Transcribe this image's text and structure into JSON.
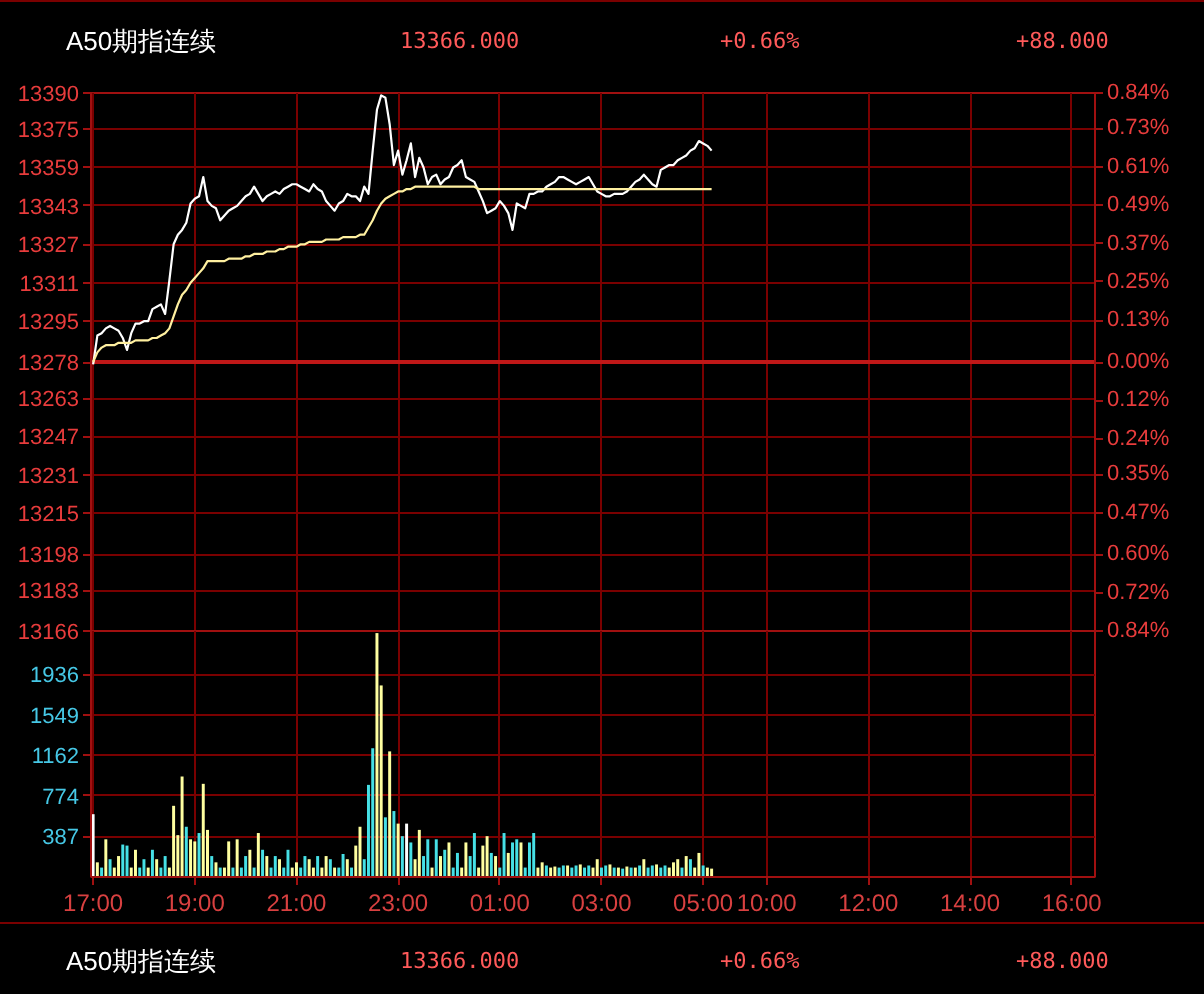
{
  "chart_data": [
    {
      "type": "line",
      "title": "A50期指连续",
      "annotations": [
        "13366.000",
        "+0.66%",
        "+88.000"
      ],
      "categories": [
        null,
        null,
        null,
        null,
        null,
        null,
        null,
        null,
        null,
        null,
        null,
        null,
        null,
        null,
        null,
        null,
        null,
        null,
        null,
        null,
        null,
        null,
        null,
        null,
        null,
        null,
        null,
        null,
        null,
        null,
        null,
        null,
        null,
        null,
        null,
        null,
        null,
        null,
        null,
        null,
        null,
        null,
        null,
        null,
        null,
        null,
        null,
        null,
        null,
        null,
        null,
        null,
        null,
        null,
        null,
        null,
        null,
        null,
        null,
        null,
        null,
        null,
        null,
        null,
        null,
        null,
        null,
        null,
        null,
        null,
        null,
        null,
        null,
        null,
        null,
        null,
        null,
        null,
        null,
        null,
        null,
        null,
        null,
        null,
        null,
        null,
        null,
        null,
        null,
        null,
        null,
        null,
        null,
        null,
        null,
        null,
        null,
        null,
        null,
        null,
        null,
        null,
        null,
        null,
        null,
        null,
        null,
        null,
        null,
        null,
        null,
        null,
        null,
        null,
        null,
        null,
        null,
        null,
        null,
        null,
        null,
        null,
        null,
        null,
        null,
        null,
        null,
        null,
        null,
        null,
        null,
        null,
        null,
        null,
        null,
        null,
        null,
        null,
        null,
        null,
        null,
        null,
        null,
        null,
        null,
        null,
        null,
        null,
        null,
        null,
        null,
        null,
        null,
        null,
        null,
        null,
        null,
        null,
        null,
        null,
        null,
        null,
        null,
        null,
        null,
        null,
        null,
        null,
        null,
        null,
        null,
        null,
        null,
        null,
        null,
        null,
        null,
        null,
        null,
        null,
        null,
        null,
        null,
        null,
        null,
        null,
        null,
        null,
        null,
        null,
        null,
        null,
        null,
        null,
        null,
        null,
        null,
        null,
        null,
        null,
        null,
        null,
        null,
        null,
        null,
        null,
        null,
        null,
        null,
        null,
        null,
        null,
        null,
        null,
        null,
        null,
        null,
        null,
        null,
        null,
        null,
        null,
        null,
        null,
        null,
        null,
        null,
        null,
        null,
        null,
        null,
        null,
        null,
        null,
        null,
        null,
        null
      ],
      "ylim": [
        13166,
        13390
      ],
      "yticks": [
        13390,
        13375,
        13359,
        13343,
        13327,
        13311,
        13295,
        13278,
        13263,
        13247,
        13231,
        13215,
        13198,
        13183,
        13166
      ],
      "y2lim": [
        -0.84,
        0.84
      ],
      "y2ticks": [
        {
          "value": 0.84,
          "label": "0.84%"
        },
        {
          "value": 0.73,
          "label": "0.73%"
        },
        {
          "value": 0.61,
          "label": "0.61%"
        },
        {
          "value": 0.49,
          "label": "0.49%"
        },
        {
          "value": 0.37,
          "label": "0.37%"
        },
        {
          "value": 0.25,
          "label": "0.25%"
        },
        {
          "value": 0.13,
          "label": "0.13%"
        },
        {
          "value": 0,
          "label": "0.00%"
        },
        {
          "value": -0.12,
          "label": "0.12%"
        },
        {
          "value": -0.24,
          "label": "0.24%"
        },
        {
          "value": -0.35,
          "label": "0.35%"
        },
        {
          "value": -0.47,
          "label": "0.47%"
        },
        {
          "value": -0.6,
          "label": "0.60%"
        },
        {
          "value": -0.72,
          "label": "0.72%"
        },
        {
          "value": -0.84,
          "label": "0.84%"
        }
      ],
      "grid": true,
      "tick_labels": "y",
      "ref_lines": [
        {
          "axis": "y",
          "value": 13278
        }
      ],
      "series": [
        {
          "color": "#ffffff",
          "values": [
            13277,
            13289,
            13290,
            13292,
            13293,
            13292,
            13291,
            13288,
            13283,
            13290,
            13294,
            13294,
            13295,
            13295,
            13300,
            13301,
            13302,
            13298,
            13312,
            13327,
            13331,
            13333,
            13336,
            13344,
            13346,
            13347,
            13355,
            13345,
            13343,
            13342,
            13337,
            13339,
            13341,
            13342,
            13343,
            13345,
            13347,
            13348,
            13351,
            13348,
            13345,
            13347,
            13348,
            13349,
            13348,
            13350,
            13351,
            13352,
            13352,
            13351,
            13350,
            13349,
            13352,
            13350,
            13349,
            13345,
            13343,
            13341,
            13344,
            13345,
            13348,
            13347,
            13347,
            13345,
            13351,
            13348,
            13366,
            13383,
            13389,
            13388,
            13377,
            13360,
            13366,
            13356,
            13362,
            13369,
            13355,
            13363,
            13359,
            13352,
            13355,
            13356,
            13352,
            13354,
            13355,
            13359,
            13360,
            13362,
            13355,
            13354,
            13353,
            13349,
            13345,
            13340,
            13341,
            13342,
            13345,
            13343,
            13340,
            13333,
            13344,
            13343,
            13342,
            13348,
            13348,
            13349,
            13349,
            13351,
            13352,
            13353,
            13355,
            13355,
            13354,
            13353,
            13352,
            13353,
            13354,
            13355,
            13352,
            13349,
            13348,
            13347,
            13347,
            13348,
            13348,
            13348,
            13349,
            13351,
            13353,
            13354,
            13356,
            13354,
            13352,
            13351,
            13358,
            13359,
            13360,
            13360,
            13362,
            13363,
            13364,
            13366,
            13367,
            13370,
            13369,
            13368,
            13366,
            null,
            null,
            null,
            null,
            null,
            null,
            null,
            null,
            null,
            null,
            null,
            null,
            null,
            null,
            null,
            null,
            null,
            null,
            null,
            null,
            null,
            null,
            null,
            null,
            null,
            null,
            null,
            null,
            null,
            null,
            null,
            null,
            null,
            null,
            null,
            null,
            null,
            null,
            null,
            null,
            null,
            null,
            null,
            null,
            null,
            null,
            null,
            null,
            null,
            null,
            null,
            null,
            null,
            null,
            null,
            null,
            null,
            null,
            null,
            null,
            null,
            null,
            null,
            null,
            null,
            null,
            null,
            null,
            null,
            null,
            null,
            null,
            null,
            null,
            null,
            null,
            null,
            null,
            null,
            null,
            null,
            null,
            null,
            null,
            null,
            null,
            null,
            null,
            null,
            null
          ]
        },
        {
          "color": "#fff0a0",
          "values": [
            13278,
            13282,
            13284,
            13285,
            13285,
            13285,
            13286,
            13286,
            13286,
            13286,
            13287,
            13287,
            13287,
            13287,
            13288,
            13288,
            13289,
            13290,
            13292,
            13297,
            13302,
            13306,
            13308,
            13311,
            13313,
            13315,
            13317,
            13320,
            13320,
            13320,
            13320,
            13320,
            13321,
            13321,
            13321,
            13321,
            13322,
            13322,
            13323,
            13323,
            13323,
            13324,
            13324,
            13324,
            13325,
            13325,
            13326,
            13326,
            13326,
            13327,
            13327,
            13328,
            13328,
            13328,
            13328,
            13329,
            13329,
            13329,
            13329,
            13330,
            13330,
            13330,
            13330,
            13331,
            13331,
            13334,
            13337,
            13341,
            13344,
            13346,
            13347,
            13348,
            13349,
            13349,
            13350,
            13350,
            13351,
            13351,
            13351,
            13351,
            13351,
            13351,
            13351,
            13351,
            13351,
            13351,
            13351,
            13351,
            13351,
            13351,
            13351,
            13350,
            13350,
            13350,
            13350,
            13350,
            13350,
            13350,
            13350,
            13350,
            13350,
            13350,
            13350,
            13350,
            13350,
            13350,
            13350,
            13350,
            13350,
            13350,
            13350,
            13350,
            13350,
            13350,
            13350,
            13350,
            13350,
            13350,
            13350,
            13350,
            13350,
            13350,
            13350,
            13350,
            13350,
            13350,
            13350,
            13350,
            13350,
            13350,
            13350,
            13350,
            13350,
            13350,
            13350,
            13350,
            13350,
            13350,
            13350,
            13350,
            13350,
            13350,
            13350,
            13350,
            13350,
            13350,
            13350,
            null,
            null,
            null,
            null,
            null,
            null,
            null,
            null,
            null,
            null,
            null,
            null,
            null,
            null,
            null,
            null,
            null,
            null,
            null,
            null,
            null,
            null,
            null,
            null,
            null,
            null,
            null,
            null,
            null,
            null,
            null,
            null,
            null,
            null,
            null,
            null,
            null,
            null,
            null,
            null,
            null,
            null,
            null,
            null,
            null,
            null,
            null,
            null,
            null,
            null,
            null,
            null,
            null,
            null,
            null,
            null,
            null,
            null,
            null,
            null,
            null,
            null,
            null,
            null,
            null,
            null,
            null,
            null,
            null,
            null,
            null,
            null,
            null,
            null,
            null,
            null,
            null,
            null,
            null,
            null,
            null,
            null,
            null,
            null,
            null,
            null,
            null,
            null,
            null,
            null
          ]
        }
      ]
    },
    {
      "type": "bar",
      "categories": [
        "17:00",
        null,
        null,
        null,
        null,
        null,
        null,
        null,
        null,
        null,
        null,
        null,
        null,
        null,
        null,
        null,
        null,
        null,
        null,
        null,
        null,
        null,
        null,
        null,
        "19:00",
        null,
        null,
        null,
        null,
        null,
        null,
        null,
        null,
        null,
        null,
        null,
        null,
        null,
        null,
        null,
        null,
        null,
        null,
        null,
        null,
        null,
        null,
        null,
        "21:00",
        null,
        null,
        null,
        null,
        null,
        null,
        null,
        null,
        null,
        null,
        null,
        null,
        null,
        null,
        null,
        null,
        null,
        null,
        null,
        null,
        null,
        null,
        null,
        "23:00",
        null,
        null,
        null,
        null,
        null,
        null,
        null,
        null,
        null,
        null,
        null,
        null,
        null,
        null,
        null,
        null,
        null,
        null,
        null,
        null,
        null,
        null,
        null,
        "01:00",
        null,
        null,
        null,
        null,
        null,
        null,
        null,
        null,
        null,
        null,
        null,
        null,
        null,
        null,
        null,
        null,
        null,
        null,
        null,
        null,
        null,
        null,
        null,
        "03:00",
        null,
        null,
        null,
        null,
        null,
        null,
        null,
        null,
        null,
        null,
        null,
        null,
        null,
        null,
        null,
        null,
        null,
        null,
        null,
        null,
        null,
        null,
        null,
        "05:00",
        null,
        null,
        null,
        null,
        null,
        null,
        null,
        null,
        null,
        null,
        null,
        null,
        null,
        null,
        "10:00",
        null,
        null,
        null,
        null,
        null,
        null,
        null,
        null,
        null,
        null,
        null,
        null,
        null,
        null,
        null,
        null,
        null,
        null,
        null,
        null,
        null,
        null,
        null,
        "12:00",
        null,
        null,
        null,
        null,
        null,
        null,
        null,
        null,
        null,
        null,
        null,
        null,
        null,
        null,
        null,
        null,
        null,
        null,
        null,
        null,
        null,
        null,
        null,
        "14:00",
        null,
        null,
        null,
        null,
        null,
        null,
        null,
        null,
        null,
        null,
        null,
        null,
        null,
        null,
        null,
        null,
        null,
        null,
        null,
        null,
        null,
        null,
        null,
        "16:00",
        null,
        null,
        null,
        null,
        null
      ],
      "ylim": [
        0,
        2350
      ],
      "yticks": [
        387,
        774,
        1162,
        1549,
        1936
      ],
      "grid": true,
      "values": [
        600,
        140,
        90,
        360,
        170,
        90,
        200,
        310,
        300,
        90,
        260,
        90,
        170,
        90,
        260,
        170,
        90,
        200,
        90,
        680,
        400,
        960,
        480,
        360,
        340,
        420,
        890,
        450,
        200,
        140,
        90,
        90,
        340,
        90,
        360,
        90,
        200,
        260,
        90,
        420,
        260,
        200,
        90,
        200,
        170,
        90,
        260,
        90,
        140,
        90,
        200,
        170,
        90,
        200,
        90,
        200,
        170,
        90,
        90,
        220,
        170,
        90,
        300,
        480,
        170,
        880,
        1230,
        2330,
        1830,
        570,
        1200,
        630,
        510,
        390,
        510,
        330,
        170,
        450,
        200,
        360,
        90,
        360,
        200,
        260,
        330,
        90,
        230,
        90,
        330,
        200,
        420,
        90,
        300,
        390,
        230,
        200,
        90,
        420,
        230,
        330,
        360,
        330,
        90,
        330,
        420,
        90,
        140,
        110,
        90,
        100,
        90,
        110,
        110,
        90,
        110,
        120,
        90,
        110,
        90,
        170,
        90,
        110,
        120,
        90,
        90,
        80,
        100,
        90,
        90,
        110,
        170,
        90,
        110,
        120,
        90,
        110,
        90,
        140,
        170,
        90,
        200,
        170,
        90,
        230,
        110,
        90,
        80,
        null,
        null,
        null,
        null,
        null,
        null,
        null,
        null,
        null,
        null,
        null,
        null,
        null,
        null,
        null,
        null,
        null,
        null,
        null,
        null,
        null,
        null,
        null,
        null,
        null,
        null,
        null,
        null,
        null,
        null,
        null,
        null,
        null,
        null,
        null,
        null,
        null,
        null,
        null,
        null,
        null,
        null,
        null,
        null,
        null,
        null,
        null,
        null,
        null,
        null,
        null,
        null,
        null,
        null,
        null,
        null,
        null,
        null,
        null,
        null,
        null,
        null,
        null,
        null,
        null,
        null,
        null,
        null,
        null,
        null,
        null,
        null,
        null,
        null,
        null,
        null,
        null,
        null,
        null,
        null,
        null,
        null,
        null,
        null,
        null,
        null,
        null,
        null,
        null,
        null
      ],
      "colors": [
        "#ffffff",
        "#ffffa0",
        "#46e0e6",
        "#ffffa0",
        "#46e0e6",
        "#ffffa0",
        "#ffffa0",
        "#46e0e6",
        "#46e0e6",
        "#ffffa0",
        "#ffffa0",
        "#46e0e6",
        "#46e0e6",
        "#ffffa0",
        "#46e0e6",
        "#ffffa0",
        "#46e0e6",
        "#46e0e6",
        "#ffffa0",
        "#ffffa0",
        "#ffffa0",
        "#ffffa0",
        "#46e0e6",
        "#ffffa0",
        "#ffffa0",
        "#46e0e6",
        "#ffffa0",
        "#ffffa0",
        "#46e0e6",
        "#ffffa0",
        "#46e0e6",
        "#ffffa0",
        "#ffffa0",
        "#46e0e6",
        "#ffffa0",
        "#46e0e6",
        "#46e0e6",
        "#ffffa0",
        "#46e0e6",
        "#ffffa0",
        "#46e0e6",
        "#ffffa0",
        "#46e0e6",
        "#46e0e6",
        "#ffffa0",
        "#46e0e6",
        "#46e0e6",
        "#ffffa0",
        "#ffffa0",
        "#46e0e6",
        "#46e0e6",
        "#ffffa0",
        "#ffffa0",
        "#46e0e6",
        "#ffffa0",
        "#ffffa0",
        "#46e0e6",
        "#ffffa0",
        "#46e0e6",
        "#46e0e6",
        "#ffffa0",
        "#46e0e6",
        "#ffffa0",
        "#ffffa0",
        "#46e0e6",
        "#46e0e6",
        "#46e0e6",
        "#ffffa0",
        "#ffffa0",
        "#46e0e6",
        "#ffffa0",
        "#46e0e6",
        "#ffffa0",
        "#46e0e6",
        "#ffffff",
        "#46e0e6",
        "#ffffa0",
        "#ffffa0",
        "#46e0e6",
        "#46e0e6",
        "#ffffa0",
        "#46e0e6",
        "#ffffa0",
        "#46e0e6",
        "#ffffa0",
        "#46e0e6",
        "#46e0e6",
        "#ffffa0",
        "#ffffa0",
        "#46e0e6",
        "#46e0e6",
        "#ffffa0",
        "#ffffa0",
        "#ffffa0",
        "#46e0e6",
        "#ffffa0",
        "#46e0e6",
        "#46e0e6",
        "#ffffa0",
        "#46e0e6",
        "#46e0e6",
        "#ffffa0",
        "#46e0e6",
        "#46e0e6",
        "#46e0e6",
        "#ffffa0",
        "#ffffa0",
        "#46e0e6",
        "#ffffa0",
        "#ffffa0",
        "#46e0e6",
        "#46e0e6",
        "#ffffa0",
        "#46e0e6",
        "#46e0e6",
        "#ffffa0",
        "#46e0e6",
        "#46e0e6",
        "#ffffa0",
        "#ffffa0",
        "#46e0e6",
        "#46e0e6",
        "#ffffa0",
        "#46e0e6",
        "#ffffa0",
        "#46e0e6",
        "#ffffa0",
        "#46e0e6",
        "#ffffa0",
        "#46e0e6",
        "#ffffa0",
        "#46e0e6",
        "#46e0e6",
        "#ffffa0",
        "#46e0e6",
        "#46e0e6",
        "#ffffa0",
        "#ffffa0",
        "#ffffa0",
        "#46e0e6",
        "#ffffa0",
        "#46e0e6",
        "#ffffa0",
        "#ffffa0",
        "#46e0e6",
        "#ffffa0",
        "#ffffa0",
        null,
        null,
        null,
        null,
        null,
        null,
        null,
        null,
        null,
        null,
        null,
        null,
        null,
        null,
        null,
        null,
        null,
        null,
        null,
        null,
        null,
        null,
        null,
        null,
        null,
        null,
        null,
        null,
        null,
        null,
        null,
        null,
        null,
        null,
        null,
        null,
        null,
        null,
        null,
        null,
        null,
        null,
        null,
        null,
        null,
        null,
        null,
        null,
        null,
        null,
        null,
        null,
        null,
        null,
        null,
        null,
        null,
        null,
        null,
        null,
        null,
        null,
        null,
        null,
        null,
        null,
        null,
        null,
        null,
        null,
        null,
        null,
        null,
        null,
        null,
        null,
        null,
        null,
        null,
        null,
        null,
        null,
        null,
        null,
        null,
        null,
        null,
        null,
        null,
        null
      ]
    },
    {
      "type": "other",
      "title": "A50期指连续",
      "annotations": [
        "13366.000",
        "+0.66%",
        "+88.000"
      ]
    }
  ]
}
